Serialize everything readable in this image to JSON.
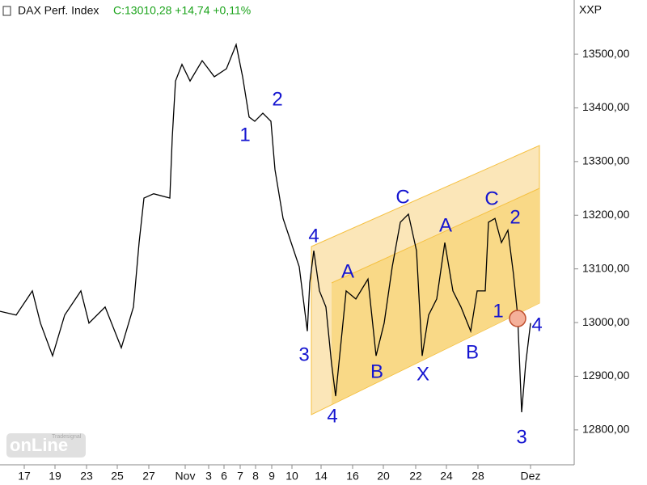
{
  "chart_data": {
    "type": "line",
    "title": "DAX Perf. Index",
    "subtitle": "C:13010,28 +14,74 +0,11%",
    "subtitle_color": "#1aa31a",
    "axis_name": "XXP",
    "logo": "onLine",
    "logo_small": "Tradesignal",
    "x": [
      0,
      20,
      40,
      50,
      65,
      80,
      100,
      110,
      130,
      150,
      165,
      172,
      178,
      190,
      210,
      213,
      217,
      225,
      235,
      250,
      265,
      280,
      292,
      300,
      308,
      315,
      325,
      335,
      340,
      350,
      360,
      370,
      380,
      383,
      388,
      395,
      403,
      410,
      415,
      420,
      428,
      440,
      455,
      465,
      475,
      485,
      495,
      505,
      515,
      522,
      530,
      540,
      550,
      560,
      570,
      582,
      590,
      600,
      604,
      612,
      620,
      628,
      635,
      640,
      645,
      650,
      656
    ],
    "series": [
      {
        "name": "DAX Perf. Index",
        "color": "#000000",
        "values": [
          13021,
          13014,
          13059,
          12999,
          12938,
          13014,
          13059,
          12999,
          13029,
          12953,
          13029,
          13149,
          13232,
          13240,
          13232,
          13345,
          13450,
          13481,
          13450,
          13488,
          13458,
          13473,
          13518,
          13458,
          13383,
          13375,
          13390,
          13375,
          13285,
          13194,
          13149,
          13104,
          12984,
          13074,
          13134,
          13059,
          13029,
          12923,
          12863,
          12938,
          13059,
          13044,
          13081,
          12938,
          12999,
          13104,
          13187,
          13202,
          13134,
          12938,
          13014,
          13044,
          13149,
          13059,
          13029,
          12984,
          13059,
          13059,
          13187,
          13194,
          13149,
          13172,
          13089,
          13014,
          12833,
          12923,
          12999
        ]
      }
    ],
    "xlim": [
      0,
      710
    ],
    "ylim": [
      12735,
      13601
    ],
    "yticks": [
      {
        "value": 12800,
        "label": "12800,00"
      },
      {
        "value": 12900,
        "label": "12900,00"
      },
      {
        "value": 13000,
        "label": "13000,00"
      },
      {
        "value": 13100,
        "label": "13100,00"
      },
      {
        "value": 13200,
        "label": "13200,00"
      },
      {
        "value": 13300,
        "label": "13300,00"
      },
      {
        "value": 13400,
        "label": "13400,00"
      },
      {
        "value": 13500,
        "label": "13500,00"
      }
    ],
    "xticks": [
      {
        "value": 30,
        "label": "17"
      },
      {
        "value": 68,
        "label": "19"
      },
      {
        "value": 107,
        "label": "23"
      },
      {
        "value": 145,
        "label": "25"
      },
      {
        "value": 184,
        "label": "27"
      },
      {
        "value": 229,
        "label": "Nov"
      },
      {
        "value": 258,
        "label": "3"
      },
      {
        "value": 277,
        "label": "6"
      },
      {
        "value": 297,
        "label": "7"
      },
      {
        "value": 316,
        "label": "8"
      },
      {
        "value": 336,
        "label": "9"
      },
      {
        "value": 361,
        "label": "10"
      },
      {
        "value": 397,
        "label": "14"
      },
      {
        "value": 436,
        "label": "16"
      },
      {
        "value": 474,
        "label": "20"
      },
      {
        "value": 514,
        "label": "22"
      },
      {
        "value": 552,
        "label": "24"
      },
      {
        "value": 591,
        "label": "28"
      },
      {
        "value": 656,
        "label": "Dez"
      }
    ],
    "annotations": [
      "2",
      "1",
      "4",
      "3",
      "4",
      "A",
      "B",
      "C",
      "X",
      "A",
      "B",
      "C",
      "2",
      "1",
      "4",
      "3"
    ]
  }
}
